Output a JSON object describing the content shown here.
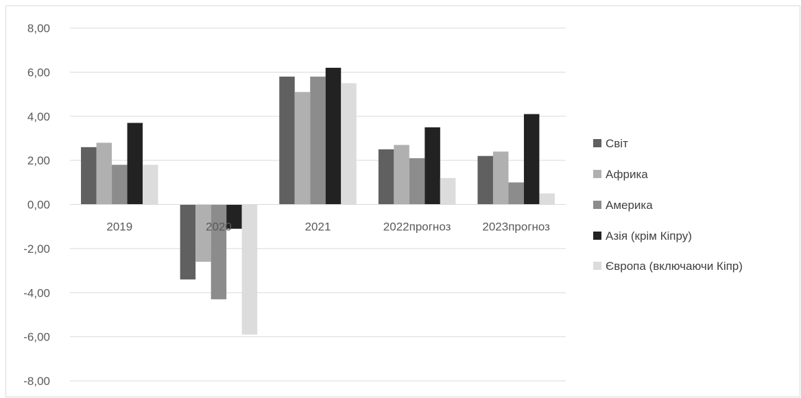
{
  "chart_data": {
    "type": "bar",
    "categories": [
      "2019",
      "2020",
      "2021",
      "2022прогноз",
      "2023прогноз"
    ],
    "series": [
      {
        "name": "Світ",
        "color": "#606060",
        "values": [
          2.6,
          -3.4,
          5.8,
          2.5,
          2.2
        ]
      },
      {
        "name": "Африка",
        "color": "#b0b0b0",
        "values": [
          2.8,
          -2.6,
          5.1,
          2.7,
          2.4
        ]
      },
      {
        "name": "Америка",
        "color": "#8c8c8c",
        "values": [
          1.8,
          -4.3,
          5.8,
          2.1,
          1.0
        ]
      },
      {
        "name": "Азія (крім Кіпру)",
        "color": "#222222",
        "values": [
          3.7,
          -1.1,
          6.2,
          3.5,
          4.1
        ]
      },
      {
        "name": "Європа (включаючи Кіпр)",
        "color": "#dcdcdc",
        "values": [
          1.8,
          -5.9,
          5.5,
          1.2,
          0.5
        ]
      }
    ],
    "ylim": [
      -8,
      8
    ],
    "yticks": [
      "8,00",
      "6,00",
      "4,00",
      "2,00",
      "0,00",
      "-2,00",
      "-4,00",
      "-6,00",
      "-8,00"
    ],
    "grid": true,
    "legend": "right",
    "title": "",
    "xlabel": "",
    "ylabel": ""
  }
}
